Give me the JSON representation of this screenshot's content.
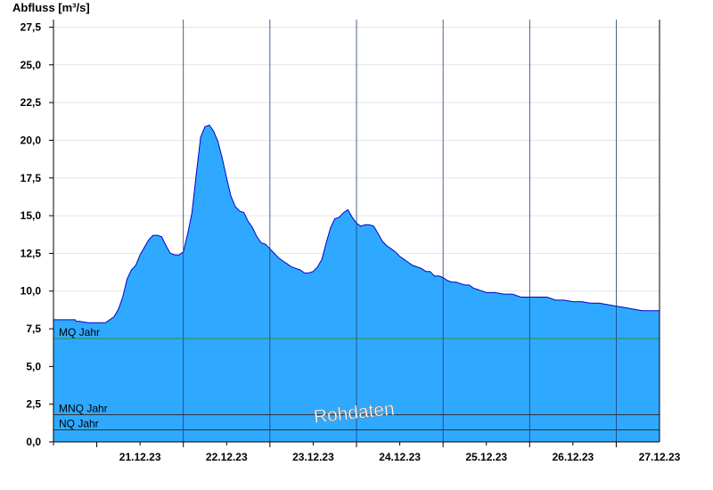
{
  "chart_data": {
    "type": "area",
    "ylabel": "Abfluss [m³/s]",
    "ylim": [
      0,
      28.0
    ],
    "yticks": [
      "0,0",
      "2,5",
      "5,0",
      "7,5",
      "10,0",
      "12,5",
      "15,0",
      "17,5",
      "20,0",
      "22,5",
      "25,0",
      "27,5"
    ],
    "xlim_days": [
      20.5,
      27.5
    ],
    "xtick_labels": [
      "21.12.23",
      "22.12.23",
      "23.12.23",
      "24.12.23",
      "25.12.23",
      "26.12.23",
      "27.12.23"
    ],
    "grid": true,
    "fill_color": "#2fa9ff",
    "line_color": "#0000cc",
    "series": [
      {
        "x": [
          20.5,
          20.75,
          20.76,
          20.8,
          20.9,
          21.0,
          21.1,
          21.2,
          21.25,
          21.3,
          21.35,
          21.4,
          21.45,
          21.5,
          21.55,
          21.6,
          21.65,
          21.7,
          21.75,
          21.8,
          21.85,
          21.9,
          21.95,
          22.0,
          22.05,
          22.1,
          22.15,
          22.2,
          22.25,
          22.3,
          22.35,
          22.4,
          22.45,
          22.5,
          22.55,
          22.6,
          22.65,
          22.7,
          22.75,
          22.8,
          22.85,
          22.9,
          22.95,
          23.0,
          23.05,
          23.1,
          23.15,
          23.2,
          23.25,
          23.3,
          23.35,
          23.4,
          23.45,
          23.5,
          23.55,
          23.6,
          23.65,
          23.7,
          23.75,
          23.8,
          23.85,
          23.9,
          23.95,
          24.0,
          24.05,
          24.1,
          24.15,
          24.2,
          24.25,
          24.3,
          24.35,
          24.4,
          24.45,
          24.5,
          24.55,
          24.6,
          24.65,
          24.7,
          24.75,
          24.8,
          24.85,
          24.9,
          24.95,
          25.0,
          25.05,
          25.1,
          25.15,
          25.2,
          25.25,
          25.3,
          25.35,
          25.4,
          25.45,
          25.5,
          25.6,
          25.7,
          25.8,
          25.9,
          26.0,
          26.1,
          26.2,
          26.3,
          26.4,
          26.5,
          26.6,
          26.7,
          26.8,
          26.9,
          27.0,
          27.1,
          27.2,
          27.3,
          27.4,
          27.45,
          27.5
        ],
        "values": [
          8.1,
          8.1,
          8.0,
          8.0,
          7.9,
          7.9,
          7.9,
          8.3,
          8.8,
          9.6,
          10.8,
          11.4,
          11.7,
          12.4,
          12.9,
          13.4,
          13.7,
          13.7,
          13.6,
          13.0,
          12.5,
          12.4,
          12.4,
          12.6,
          13.8,
          15.2,
          17.8,
          20.2,
          20.9,
          21.0,
          20.6,
          19.9,
          18.8,
          17.5,
          16.3,
          15.6,
          15.3,
          15.2,
          14.6,
          14.2,
          13.6,
          13.2,
          13.1,
          12.8,
          12.5,
          12.2,
          12.0,
          11.8,
          11.6,
          11.5,
          11.4,
          11.2,
          11.2,
          11.3,
          11.6,
          12.1,
          13.2,
          14.2,
          14.8,
          14.9,
          15.2,
          15.4,
          14.9,
          14.5,
          14.3,
          14.4,
          14.4,
          14.3,
          13.8,
          13.3,
          13.0,
          12.8,
          12.6,
          12.3,
          12.1,
          11.9,
          11.7,
          11.6,
          11.5,
          11.3,
          11.3,
          11.0,
          11.0,
          10.9,
          10.7,
          10.6,
          10.6,
          10.5,
          10.4,
          10.4,
          10.2,
          10.1,
          10.0,
          9.9,
          9.9,
          9.8,
          9.8,
          9.6,
          9.6,
          9.6,
          9.6,
          9.4,
          9.4,
          9.3,
          9.3,
          9.2,
          9.2,
          9.1,
          9.0,
          8.9,
          8.8,
          8.7,
          8.7,
          8.7,
          8.7
        ]
      }
    ],
    "reference_lines": [
      {
        "label": "MQ Jahr",
        "value": 6.85,
        "color": "#2e8b3a"
      },
      {
        "label": "MNQ Jahr",
        "value": 1.8,
        "color": "#333333"
      },
      {
        "label": "NQ Jahr",
        "value": 0.8,
        "color": "#333333"
      }
    ],
    "watermark": "Rohdaten"
  }
}
